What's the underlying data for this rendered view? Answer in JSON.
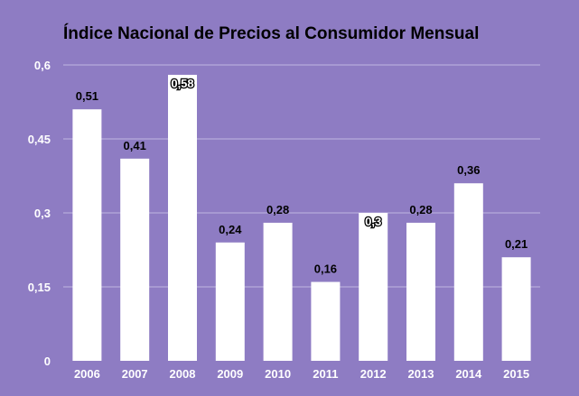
{
  "chart_data": {
    "type": "bar",
    "title": "Índice Nacional de Precios al Consumidor Mensual",
    "xlabel": "",
    "ylabel": "",
    "categories": [
      "2006",
      "2007",
      "2008",
      "2009",
      "2010",
      "2011",
      "2012",
      "2013",
      "2014",
      "2015"
    ],
    "values": [
      0.51,
      0.41,
      0.58,
      0.24,
      0.28,
      0.16,
      0.3,
      0.28,
      0.36,
      0.21
    ],
    "value_labels": [
      "0,51",
      "0,41",
      "0,58",
      "0,24",
      "0,28",
      "0,16",
      "0,3",
      "0,28",
      "0,36",
      "0,21"
    ],
    "ylim": [
      0,
      0.6
    ],
    "yticks": [
      0,
      0.15,
      0.3,
      0.45,
      0.6
    ],
    "ytick_labels": [
      "0",
      "0,15",
      "0,3",
      "0,45",
      "0,6"
    ],
    "grid": true,
    "legend": "none"
  },
  "colors": {
    "background": "#8e7cc3",
    "bar": "#ffffff",
    "gridline": "#b6aadb",
    "axis_text": "#ffffff",
    "label_text": "#000000"
  }
}
